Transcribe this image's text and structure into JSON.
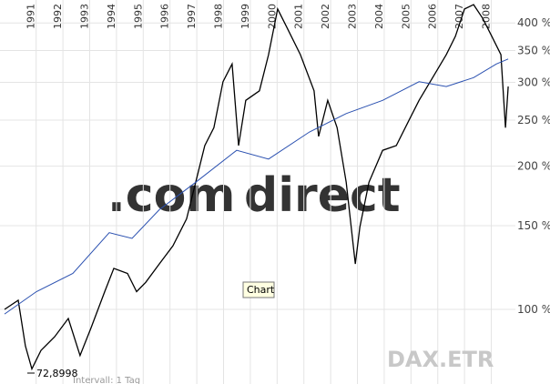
{
  "chart_data": {
    "type": "line",
    "log_scale": true,
    "grid": true,
    "xlim": [
      1989.65,
      2008.9
    ],
    "ylim": [
      69.7,
      447
    ],
    "xticks": [
      1991,
      1992,
      1993,
      1994,
      1995,
      1996,
      1997,
      1998,
      1999,
      2000,
      2001,
      2002,
      2003,
      2004,
      2005,
      2006,
      2007,
      2008
    ],
    "yticks": [
      {
        "value": 100,
        "label": "100 %"
      },
      {
        "value": 150,
        "label": "150 %"
      },
      {
        "value": 200,
        "label": "200 %"
      },
      {
        "value": 250,
        "label": "250 %"
      },
      {
        "value": 300,
        "label": "300 %"
      },
      {
        "value": 350,
        "label": "350 %"
      },
      {
        "value": 400,
        "label": "400 %"
      }
    ],
    "series": [
      {
        "color": "#000000",
        "x": [
          1989.82,
          1990.33,
          1990.6,
          1990.84,
          1991.18,
          1991.69,
          1992.2,
          1992.64,
          1993.05,
          1993.56,
          1993.9,
          1994.41,
          1994.75,
          1995.09,
          1995.6,
          1996.11,
          1996.62,
          1996.96,
          1997.3,
          1997.64,
          1997.98,
          1998.32,
          1998.56,
          1998.83,
          1999.34,
          1999.68,
          2000.02,
          2000.36,
          2000.87,
          2001.38,
          2001.55,
          2001.89,
          2002.24,
          2002.58,
          2002.92,
          2003.09,
          2003.43,
          2003.94,
          2004.45,
          2004.96,
          2005.3,
          2005.81,
          2006.32,
          2006.66,
          2007,
          2007.34,
          2007.68,
          2008.02,
          2008.36,
          2008.53,
          2008.63
        ],
        "values": [
          100,
          104.5,
          83.8,
          75,
          82,
          87.6,
          95.7,
          80,
          91.5,
          109,
          122,
          119,
          109,
          114,
          124.6,
          136,
          155,
          185,
          221,
          241,
          301,
          328,
          221,
          275,
          288,
          343,
          428,
          392,
          343,
          288,
          231,
          275,
          241,
          185,
          124.6,
          149,
          185,
          216,
          221,
          252,
          275,
          307,
          343,
          375,
          428,
          437,
          409,
          375,
          343,
          241,
          294
        ]
      },
      {
        "color": "#2a50b0",
        "x": [
          1989.82,
          1991.01,
          1992.37,
          1993.73,
          1994.58,
          1995.6,
          1996.96,
          1998.49,
          1999.68,
          2001.21,
          2002.58,
          2003.94,
          2005.3,
          2006.32,
          2007.34,
          2008.19,
          2008.63
        ],
        "values": [
          97.8,
          109,
          119,
          145,
          141,
          162,
          185,
          216,
          207,
          236,
          258,
          275,
          301,
          294,
          307,
          328,
          336
        ]
      }
    ],
    "watermark": [
      ".com",
      "direct"
    ],
    "symbol": "DAX.ETR",
    "tooltip": "Chart",
    "min_label": "72,8998",
    "footer": "Intervall: 1 Tag"
  }
}
